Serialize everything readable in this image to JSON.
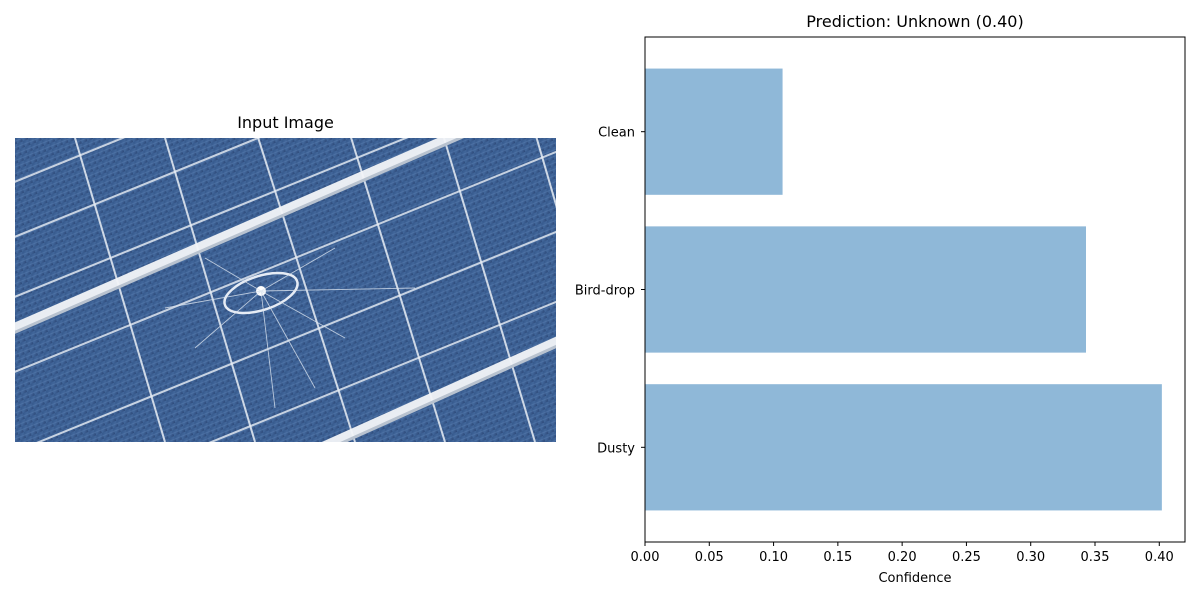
{
  "image_panel": {
    "title": "Input Image",
    "photo_subject": "cracked-solar-panel"
  },
  "chart_data": {
    "type": "bar",
    "orientation": "horizontal",
    "title": "Prediction: Unknown (0.40)",
    "xlabel": "Confidence",
    "ylabel": "",
    "categories": [
      "Dusty",
      "Bird-drop",
      "Clean"
    ],
    "values": [
      0.402,
      0.343,
      0.107
    ],
    "xlim": [
      0.0,
      0.42
    ],
    "xticks": [
      "0.00",
      "0.05",
      "0.10",
      "0.15",
      "0.20",
      "0.25",
      "0.30",
      "0.35",
      "0.40"
    ],
    "bar_color": "#8fb8d8",
    "grid": false,
    "legend": "none"
  }
}
